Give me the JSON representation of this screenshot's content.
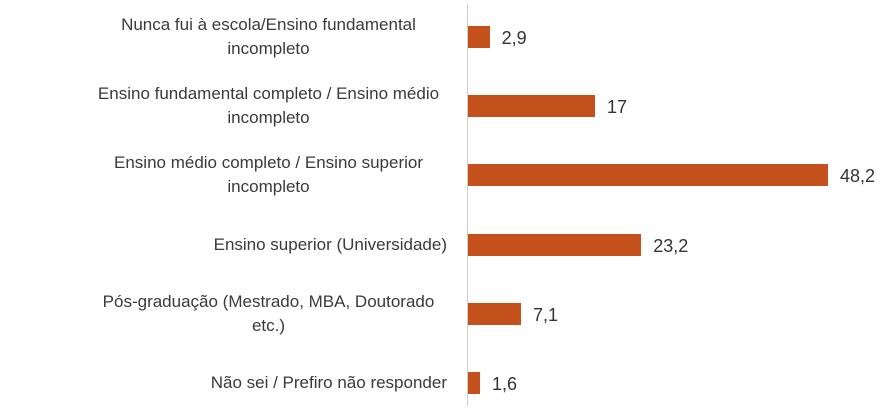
{
  "chart_data": {
    "type": "bar",
    "orientation": "horizontal",
    "categories": [
      "Nunca fui à escola/Ensino fundamental incompleto",
      "Ensino fundamental completo / Ensino médio incompleto",
      "Ensino médio completo / Ensino superior incompleto",
      "Ensino superior (Universidade)",
      "Pós-graduação (Mestrado, MBA, Doutorado etc.)",
      "Não sei / Prefiro não responder"
    ],
    "values": [
      2.9,
      17,
      48.2,
      23.2,
      7.1,
      1.6
    ],
    "value_labels": [
      "2,9",
      "17",
      "48,2",
      "23,2",
      "7,1",
      "1,6"
    ],
    "color": "#c4501b"
  }
}
